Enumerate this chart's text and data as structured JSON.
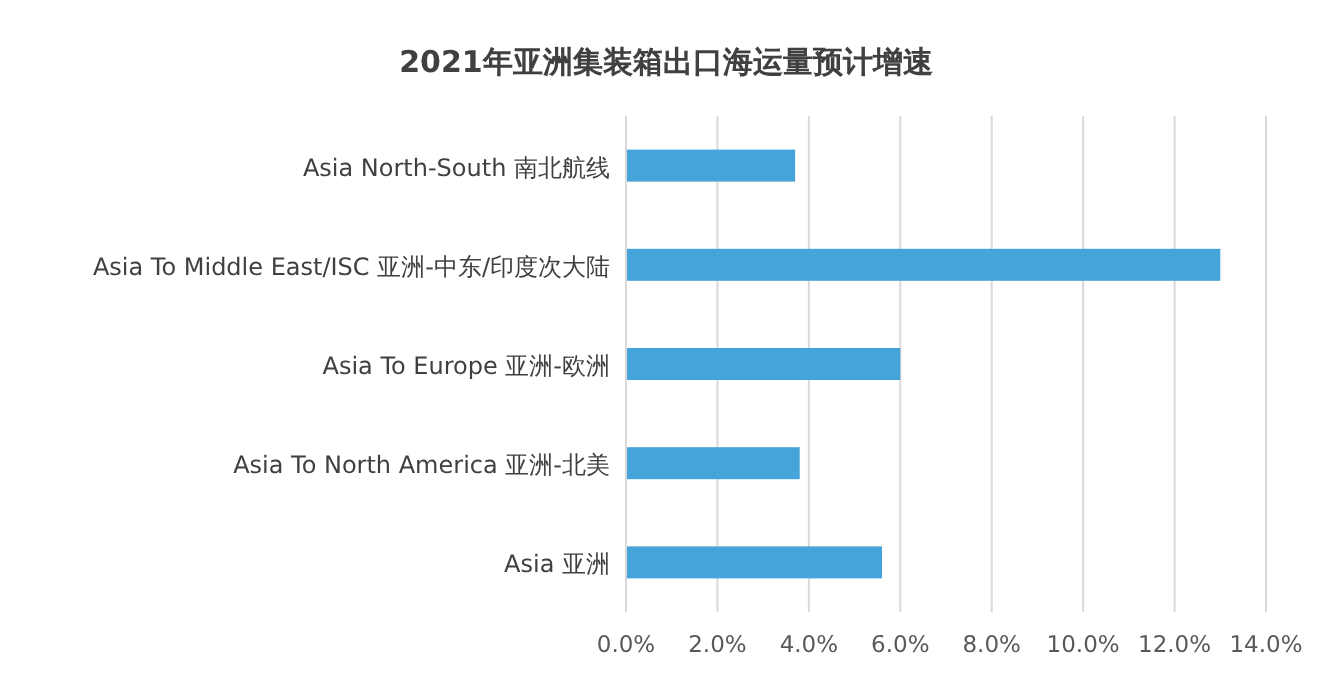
{
  "chart_data": {
    "type": "bar",
    "orientation": "horizontal",
    "title": "2021年亚洲集装箱出口海运量预计增速",
    "categories": [
      "Asia North-South 南北航线",
      "Asia To Middle East/ISC 亚洲-中东/印度次大陆",
      "Asia To Europe 亚洲-欧洲",
      "Asia To North America 亚洲-北美",
      "Asia 亚洲"
    ],
    "values": [
      3.7,
      13.0,
      6.0,
      3.8,
      5.6
    ],
    "color": "#45a5da",
    "xlim": [
      0,
      14
    ],
    "xticks": [
      {
        "value": 0,
        "label": "0.0%"
      },
      {
        "value": 2,
        "label": "2.0%"
      },
      {
        "value": 4,
        "label": "4.0%"
      },
      {
        "value": 6,
        "label": "6.0%"
      },
      {
        "value": 8,
        "label": "8.0%"
      },
      {
        "value": 10,
        "label": "10.0%"
      },
      {
        "value": 12,
        "label": "12.0%"
      },
      {
        "value": 14,
        "label": "14.0%"
      }
    ],
    "grid": "x"
  }
}
